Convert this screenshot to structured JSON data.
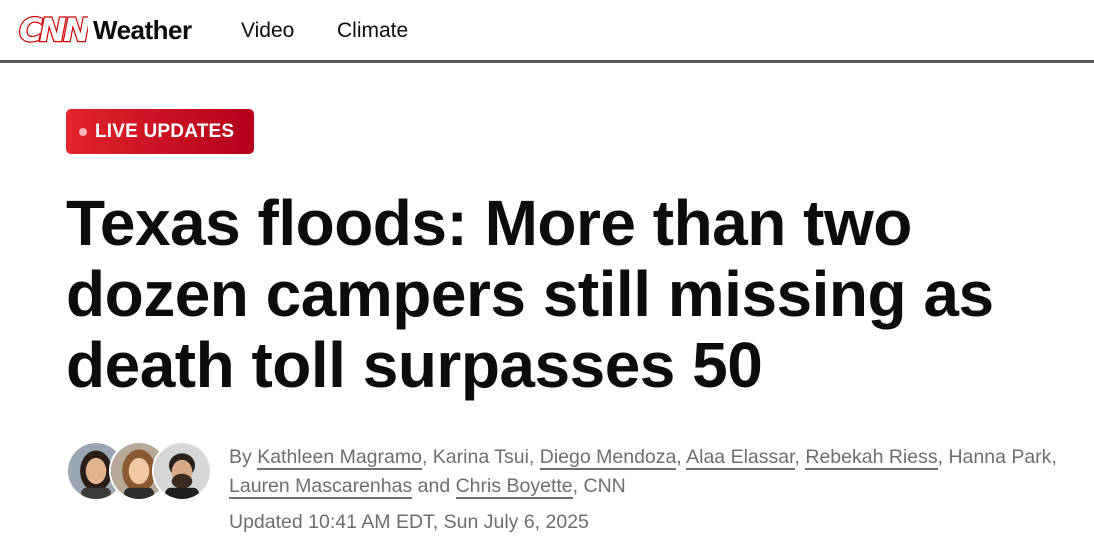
{
  "header": {
    "brand": "CNN",
    "section": "Weather",
    "nav": [
      "Video",
      "Climate"
    ]
  },
  "badge": {
    "label": "LIVE UPDATES"
  },
  "headline": "Texas floods: More than two dozen campers still missing as death toll surpasses 50",
  "byline": {
    "prefix": "By",
    "authors": [
      "Kathleen Magramo",
      "Karina Tsui",
      "Diego Mendoza",
      "Alaa Elassar",
      "Rebekah Riess",
      "Hanna Park",
      "Lauren Mascarenhas",
      "Chris Boyette"
    ],
    "separator": ",",
    "and": "and",
    "suffix": ", CNN"
  },
  "updated": "Updated 10:41 AM EDT, Sun July 6, 2025",
  "colors": {
    "brand_red": "#cc0000",
    "badge_start": "#e2242c",
    "badge_end": "#b3001b",
    "meta_gray": "#6e6e6e"
  }
}
